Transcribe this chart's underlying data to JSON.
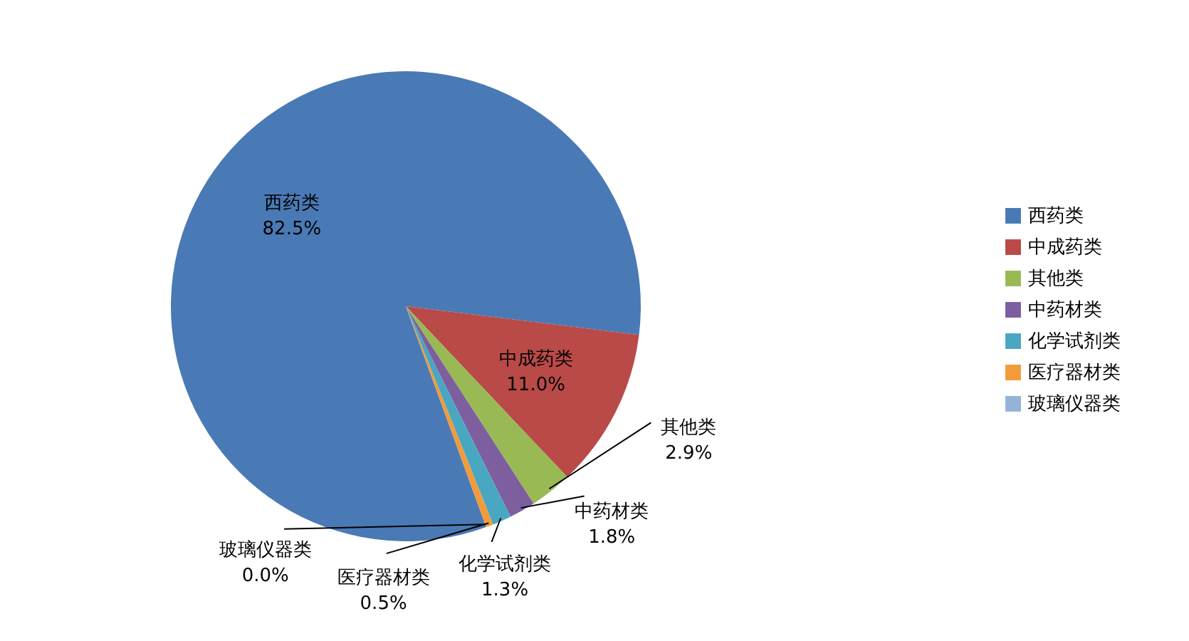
{
  "chart_data": {
    "type": "pie",
    "categories": [
      "西药类",
      "中成药类",
      "其他类",
      "中药材类",
      "化学试剂类",
      "医疗器材类",
      "玻璃仪器类"
    ],
    "values": [
      82.5,
      11.0,
      2.9,
      1.8,
      1.3,
      0.5,
      0.0
    ],
    "value_labels": [
      "82.5%",
      "11.0%",
      "2.9%",
      "1.8%",
      "1.3%",
      "0.5%",
      "0.0%"
    ],
    "colors": [
      "#4a7ab5",
      "#b94a48",
      "#98b954",
      "#7d5fa0",
      "#4aa7c1",
      "#f39a3a",
      "#95b3d7"
    ],
    "legend": "right"
  }
}
